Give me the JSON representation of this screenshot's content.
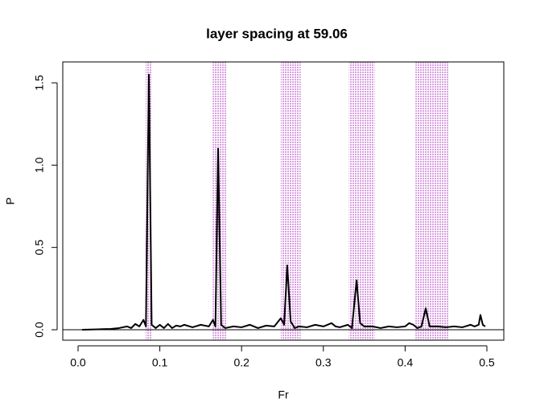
{
  "chart_data": {
    "type": "line",
    "title": "layer spacing at 59.06",
    "x_label": "Fr",
    "y_label": "P",
    "x": [
      0.005,
      0.02,
      0.04,
      0.05,
      0.06,
      0.065,
      0.07,
      0.075,
      0.08,
      0.083,
      0.0866,
      0.09,
      0.095,
      0.1,
      0.105,
      0.11,
      0.115,
      0.12,
      0.125,
      0.13,
      0.14,
      0.15,
      0.16,
      0.165,
      0.168,
      0.1713,
      0.175,
      0.18,
      0.19,
      0.2,
      0.21,
      0.22,
      0.23,
      0.24,
      0.248,
      0.252,
      0.2559,
      0.26,
      0.265,
      0.27,
      0.28,
      0.29,
      0.3,
      0.31,
      0.315,
      0.32,
      0.33,
      0.335,
      0.3406,
      0.345,
      0.35,
      0.36,
      0.37,
      0.38,
      0.39,
      0.4,
      0.405,
      0.41,
      0.415,
      0.42,
      0.4252,
      0.43,
      0.44,
      0.45,
      0.46,
      0.47,
      0.48,
      0.485,
      0.49,
      0.4921,
      0.495,
      0.498
    ],
    "series": [
      {
        "color": "#000000",
        "values": [
          0,
          0.002,
          0.005,
          0.01,
          0.02,
          0.01,
          0.035,
          0.02,
          0.06,
          0.02,
          1.55,
          0.03,
          0.01,
          0.03,
          0.01,
          0.035,
          0.01,
          0.025,
          0.02,
          0.03,
          0.015,
          0.03,
          0.02,
          0.06,
          0.02,
          1.1,
          0.03,
          0.01,
          0.02,
          0.015,
          0.03,
          0.01,
          0.025,
          0.02,
          0.07,
          0.03,
          0.39,
          0.05,
          0.01,
          0.02,
          0.015,
          0.03,
          0.02,
          0.04,
          0.02,
          0.015,
          0.03,
          0.01,
          0.3,
          0.04,
          0.02,
          0.02,
          0.01,
          0.02,
          0.015,
          0.02,
          0.04,
          0.03,
          0.01,
          0.02,
          0.13,
          0.02,
          0.02,
          0.015,
          0.02,
          0.015,
          0.03,
          0.02,
          0.03,
          0.09,
          0.03,
          0.02
        ]
      }
    ],
    "bands": [
      [
        0.0827,
        0.0906
      ],
      [
        0.165,
        0.182
      ],
      [
        0.248,
        0.272
      ],
      [
        0.331,
        0.363
      ],
      [
        0.413,
        0.454
      ]
    ],
    "band_color": "#b040c0",
    "hline": 0,
    "xlim": [
      -0.0187,
      0.5207
    ],
    "ylim": [
      -0.0635,
      1.627
    ],
    "xticks": [
      {
        "value": 0,
        "label": "0.0"
      },
      {
        "value": 0.1,
        "label": "0.1"
      },
      {
        "value": 0.2,
        "label": "0.2"
      },
      {
        "value": 0.3,
        "label": "0.3"
      },
      {
        "value": 0.4,
        "label": "0.4"
      },
      {
        "value": 0.5,
        "label": "0.5"
      }
    ],
    "yticks": [
      {
        "value": 0,
        "label": "0.0"
      },
      {
        "value": 0.5,
        "label": "0.5"
      },
      {
        "value": 1,
        "label": "1.0"
      },
      {
        "value": 1.5,
        "label": "1.5"
      }
    ]
  }
}
